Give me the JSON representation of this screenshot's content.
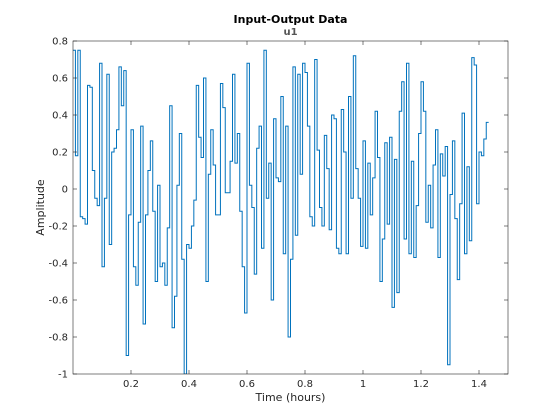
{
  "chart_data": {
    "type": "line",
    "step": true,
    "title": "Input-Output Data",
    "subtitle": "u1",
    "xlabel": "Time (hours)",
    "ylabel": "Amplitude",
    "xlim": [
      0,
      1.5
    ],
    "ylim": [
      -1,
      0.8
    ],
    "xticks": [
      0.2,
      0.4,
      0.6,
      0.8,
      1,
      1.2,
      1.4
    ],
    "xtick_labels": [
      "0.2",
      "0.4",
      "0.6",
      "0.8",
      "1",
      "1.2",
      "1.4"
    ],
    "yticks": [
      -1,
      -0.8,
      -0.6,
      -0.4,
      -0.2,
      0,
      0.2,
      0.4,
      0.6,
      0.8
    ],
    "ytick_labels": [
      "-1",
      "-0.8",
      "-0.6",
      "-0.4",
      "-0.2",
      "0",
      "0.2",
      "0.4",
      "0.6",
      "0.8"
    ],
    "grid": false,
    "line_color": "#0072bd",
    "series": [
      {
        "dt": 0.0083333,
        "values": [
          0.75,
          0.18,
          0.75,
          -0.15,
          -0.16,
          -0.19,
          0.56,
          0.55,
          0.1,
          -0.05,
          -0.09,
          0.68,
          -0.42,
          -0.05,
          0.62,
          -0.3,
          0.2,
          0.22,
          0.32,
          0.66,
          0.45,
          0.64,
          -0.9,
          -0.14,
          0.32,
          -0.42,
          -0.52,
          -0.18,
          0.34,
          -0.73,
          -0.14,
          0.1,
          0.26,
          -0.12,
          -0.5,
          0.02,
          -0.42,
          -0.4,
          -0.52,
          -0.21,
          0.45,
          -0.75,
          -0.58,
          0.02,
          0.3,
          -0.38,
          -1.0,
          -0.3,
          -0.32,
          -0.2,
          -0.06,
          0.56,
          0.28,
          0.17,
          0.6,
          -0.5,
          0.08,
          0.32,
          0.13,
          -0.14,
          -0.14,
          0.57,
          0.44,
          -0.02,
          -0.02,
          0.15,
          0.62,
          0.14,
          0.3,
          -0.12,
          -0.42,
          -0.67,
          0.68,
          0.02,
          -0.1,
          -0.46,
          0.22,
          0.34,
          -0.32,
          0.75,
          -0.05,
          0.14,
          -0.6,
          0.38,
          0.06,
          0.04,
          0.5,
          -0.35,
          0.34,
          -0.8,
          -0.38,
          0.66,
          -0.25,
          0.62,
          0.08,
          0.68,
          0.63,
          0.34,
          -0.15,
          -0.2,
          0.7,
          0.21,
          -0.1,
          -0.2,
          0.29,
          0.11,
          -0.22,
          0.4,
          0.38,
          -0.32,
          -0.35,
          0.43,
          0.2,
          -0.35,
          0.5,
          -0.05,
          0.72,
          0.11,
          -0.05,
          -0.31,
          0.26,
          -0.32,
          0.14,
          -0.14,
          0.06,
          0.42,
          0.17,
          -0.5,
          -0.27,
          0.25,
          -0.19,
          0.28,
          -0.64,
          0.16,
          -0.56,
          0.42,
          0.58,
          -0.27,
          0.68,
          -0.35,
          0.15,
          -0.37,
          -0.09,
          0.3,
          0.58,
          0.42,
          -0.18,
          0.02,
          -0.21,
          0.13,
          0.32,
          -0.37,
          0.19,
          0.07,
          0.23,
          -0.95,
          -0.03,
          0.26,
          -0.16,
          -0.49,
          -0.08,
          0.41,
          -0.35,
          0.12,
          -0.28,
          0.71,
          0.67,
          -0.08,
          0.2,
          0.18,
          0.27,
          0.36
        ]
      }
    ]
  }
}
